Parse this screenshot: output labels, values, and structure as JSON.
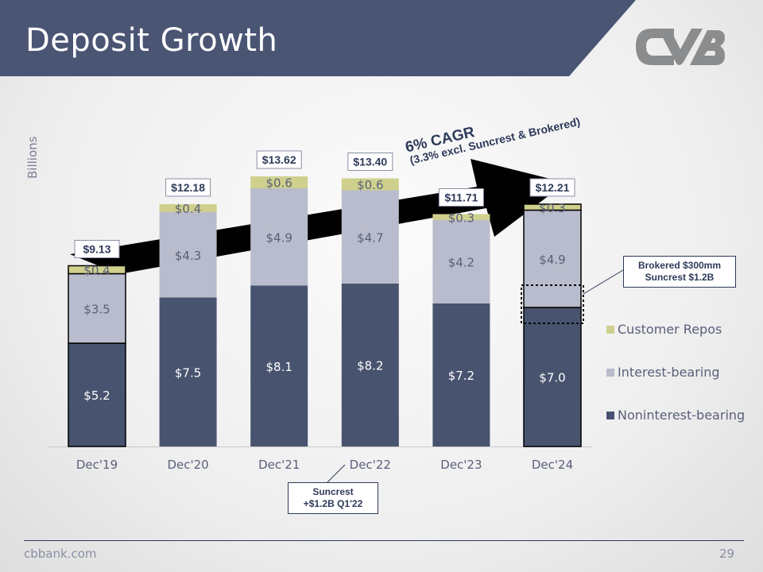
{
  "title": "Deposit Growth",
  "footer": {
    "site": "cbbank.com",
    "page_number": "29"
  },
  "colors": {
    "header": "#4a5574",
    "noninterest": "#48536f",
    "interest": "#b9bccc",
    "repos": "#cfd08d"
  },
  "annotations": {
    "cagr_title": "6% CAGR",
    "cagr_subtitle": "(3.3% excl. Suncrest & Brokered)",
    "brokered_callout": [
      "Brokered $300mm",
      "Suncrest $1.2B"
    ],
    "suncrest_callout": [
      "Suncrest",
      "+$1.2B Q1'22"
    ]
  },
  "chart_data": {
    "type": "bar",
    "stacked": true,
    "ylabel": "Billions",
    "categories": [
      "Dec'19",
      "Dec'20",
      "Dec'21",
      "Dec'22",
      "Dec'23",
      "Dec'24"
    ],
    "series": [
      {
        "name": "Noninterest-bearing",
        "values": [
          5.2,
          7.5,
          8.1,
          8.2,
          7.2,
          7.0
        ],
        "labels": [
          "$5.2",
          "$7.5",
          "$8.1",
          "$8.2",
          "$7.2",
          "$7.0"
        ]
      },
      {
        "name": "Interest-bearing",
        "values": [
          3.5,
          4.3,
          4.9,
          4.7,
          4.2,
          4.9
        ],
        "labels": [
          "$3.5",
          "$4.3",
          "$4.9",
          "$4.7",
          "$4.2",
          "$4.9"
        ]
      },
      {
        "name": "Customer Repos",
        "values": [
          0.4,
          0.4,
          0.6,
          0.6,
          0.3,
          0.3
        ],
        "labels": [
          "$0.4",
          "$0.4",
          "$0.6",
          "$0.6",
          "$0.3",
          "$0.3"
        ]
      }
    ],
    "totals": [
      "$9.13",
      "$12.18",
      "$13.62",
      "$13.40",
      "$11.71",
      "$12.21"
    ],
    "legend": [
      "Customer Repos",
      "Interest-bearing",
      "Noninterest-bearing"
    ],
    "legend_position": "right",
    "grid": false
  }
}
